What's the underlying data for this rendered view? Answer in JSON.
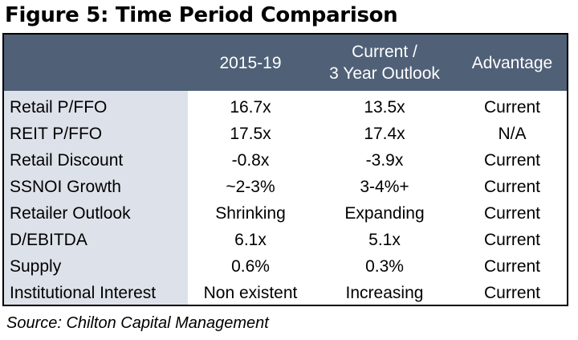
{
  "title": "Figure 5: Time Period Comparison",
  "table": {
    "headers": {
      "col1": "2015-19",
      "col2_line1": "Current /",
      "col2_line2": "3 Year Outlook",
      "col3": "Advantage"
    },
    "rows": [
      {
        "label": "Retail P/FFO",
        "a": "16.7x",
        "b": "13.5x",
        "c": "Current"
      },
      {
        "label": "REIT P/FFO",
        "a": "17.5x",
        "b": "17.4x",
        "c": "N/A"
      },
      {
        "label": "Retail Discount",
        "a": "-0.8x",
        "b": "-3.9x",
        "c": "Current"
      },
      {
        "label": "SSNOI Growth",
        "a": "~2-3%",
        "b": "3-4%+",
        "c": "Current"
      },
      {
        "label": "Retailer Outlook",
        "a": "Shrinking",
        "b": "Expanding",
        "c": "Current"
      },
      {
        "label": "D/EBITDA",
        "a": "6.1x",
        "b": "5.1x",
        "c": "Current"
      },
      {
        "label": "Supply",
        "a": "0.6%",
        "b": "0.3%",
        "c": "Current"
      },
      {
        "label": "Institutional Interest",
        "a": "Non existent",
        "b": "Increasing",
        "c": "Current"
      }
    ]
  },
  "source": "Source: Chilton Capital Management",
  "colors": {
    "header_background": "#4f6077",
    "label_column_background": "#dde2ea",
    "border": "#000000"
  }
}
